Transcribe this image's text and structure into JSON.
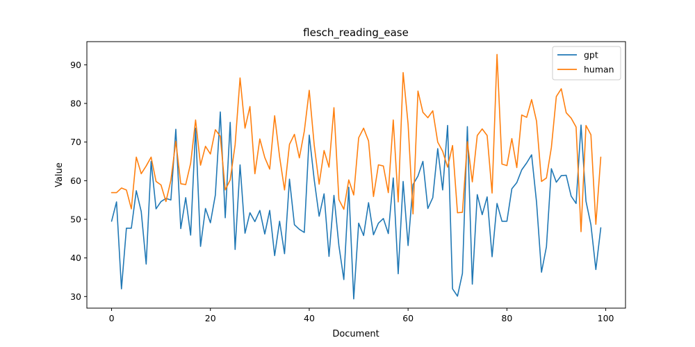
{
  "chart_data": {
    "type": "line",
    "title": "flesch_reading_ease",
    "xlabel": "Document",
    "ylabel": "Value",
    "xlim": [
      -5,
      104
    ],
    "ylim": [
      27,
      96
    ],
    "xticks": [
      0,
      20,
      40,
      60,
      80,
      100
    ],
    "yticks": [
      30,
      40,
      50,
      60,
      70,
      80,
      90
    ],
    "grid": false,
    "legend_position": "upper right",
    "series": [
      {
        "name": "gpt",
        "color": "#1f77b4",
        "values": [
          49.5,
          54.5,
          32.0,
          47.7,
          47.7,
          57.4,
          52.0,
          38.4,
          65.0,
          52.7,
          54.6,
          55.4,
          55.0,
          73.3,
          47.6,
          55.6,
          45.9,
          73.6,
          43.0,
          52.8,
          49.1,
          56.3,
          77.8,
          50.4,
          75.1,
          42.2,
          64.1,
          46.4,
          51.7,
          49.4,
          52.3,
          46.2,
          52.3,
          40.6,
          49.5,
          41.1,
          60.4,
          48.6,
          47.4,
          46.6,
          71.8,
          60.3,
          50.8,
          56.6,
          40.4,
          56.2,
          43.2,
          34.4,
          58.3,
          29.4,
          49.0,
          45.8,
          54.3,
          46.0,
          49.0,
          50.2,
          46.3,
          60.7,
          35.9,
          59.8,
          43.2,
          59.0,
          61.2,
          65.0,
          52.8,
          55.6,
          68.3,
          57.6,
          74.3,
          32.0,
          30.1,
          36.0,
          74.0,
          33.2,
          56.4,
          51.2,
          55.8,
          40.3,
          54.1,
          49.5,
          49.5,
          57.9,
          59.5,
          62.8,
          64.6,
          66.7,
          54.4,
          36.3,
          42.9,
          63.1,
          59.6,
          61.3,
          61.4,
          56.0,
          54.1,
          74.4,
          54.7,
          48.6,
          37.0,
          47.8
        ]
      },
      {
        "name": "human",
        "color": "#ff7f0e",
        "values": [
          56.9,
          56.9,
          58.1,
          57.6,
          52.7,
          66.1,
          61.8,
          63.8,
          66.1,
          59.8,
          58.9,
          54.6,
          60.1,
          70.2,
          59.2,
          59.0,
          64.5,
          75.7,
          64.0,
          68.9,
          66.9,
          73.2,
          71.5,
          57.6,
          60.2,
          69.3,
          86.6,
          73.6,
          79.2,
          61.8,
          70.8,
          66.0,
          63.0,
          76.8,
          66.2,
          57.6,
          69.4,
          72.0,
          65.9,
          72.8,
          83.4,
          69.3,
          59.1,
          67.8,
          63.5,
          78.9,
          55.1,
          52.6,
          60.2,
          56.3,
          71.1,
          73.6,
          70.3,
          55.9,
          64.1,
          63.8,
          56.9,
          75.7,
          54.5,
          88.0,
          74.7,
          51.4,
          83.2,
          77.7,
          76.3,
          78.1,
          70.0,
          67.6,
          63.5,
          69.1,
          51.7,
          51.8,
          70.1,
          59.7,
          71.7,
          73.4,
          71.7,
          56.8,
          92.7,
          64.3,
          63.9,
          70.9,
          63.4,
          77.0,
          76.4,
          81.0,
          75.4,
          59.8,
          60.7,
          68.6,
          81.8,
          83.8,
          77.6,
          76.2,
          73.9,
          46.8,
          74.3,
          71.9,
          48.7,
          66.1
        ]
      }
    ]
  }
}
